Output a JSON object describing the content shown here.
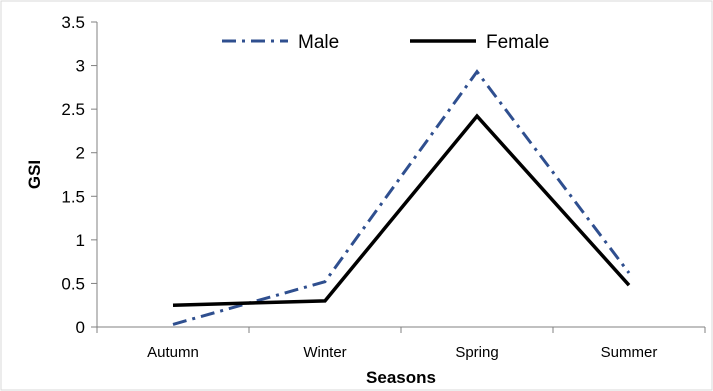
{
  "chart_data": {
    "type": "line",
    "title": "",
    "xlabel": "Seasons",
    "ylabel": "GSI",
    "categories": [
      "Autumn",
      "Winter",
      "Spring",
      "Summer"
    ],
    "ylim": [
      0,
      3.5
    ],
    "yticks": [
      "0",
      "0.5",
      "1",
      "1.5",
      "2",
      "2.5",
      "3",
      "3.5"
    ],
    "grid": false,
    "legend_position": "top",
    "series": [
      {
        "name": "Male",
        "values": [
          0.03,
          0.52,
          2.93,
          0.62
        ],
        "color": "#2f4f8f",
        "style": "dash-dot"
      },
      {
        "name": "Female",
        "values": [
          0.25,
          0.3,
          2.42,
          0.48
        ],
        "color": "#000000",
        "style": "solid"
      }
    ]
  }
}
